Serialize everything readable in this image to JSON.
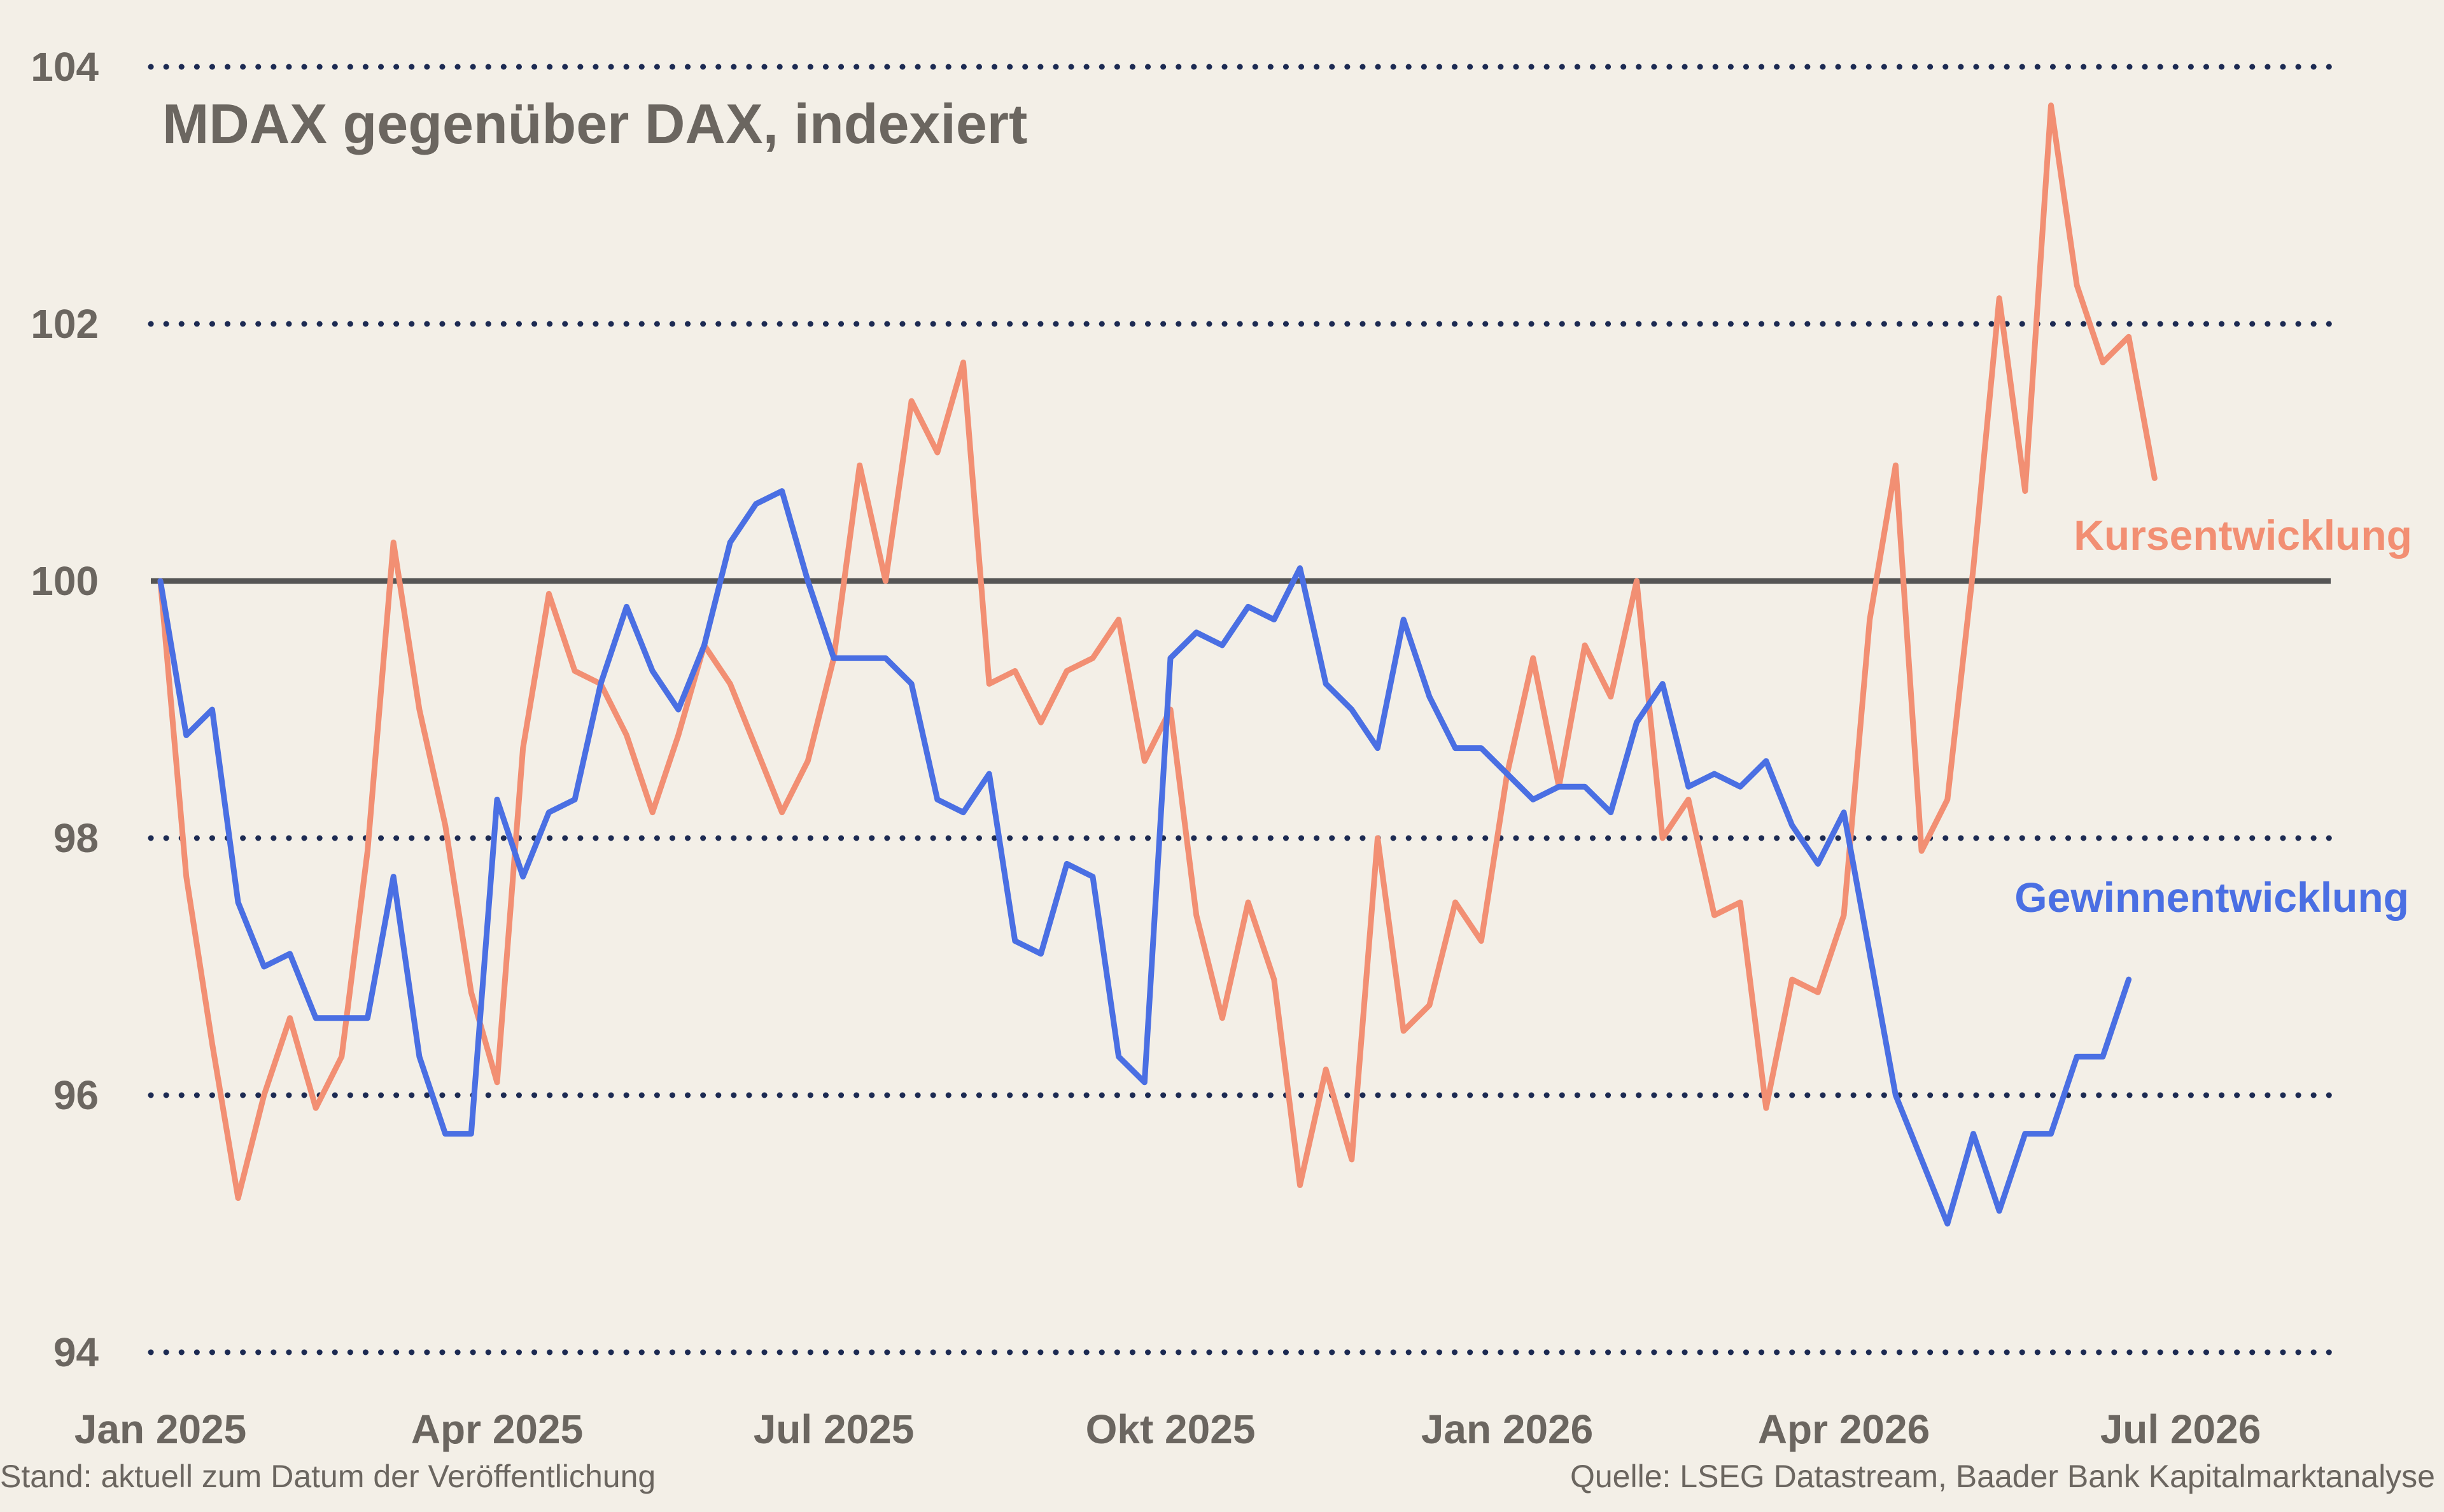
{
  "chart_data": {
    "type": "line",
    "title": "MDAX gegenüber DAX, indexiert",
    "xlabel": "",
    "ylabel": "",
    "ylim": [
      94,
      104
    ],
    "yticks": [
      94,
      96,
      98,
      100,
      102,
      104
    ],
    "ytick_labels": [
      "94",
      "96",
      "98",
      "100",
      "102",
      "104"
    ],
    "grid": true,
    "reference_line": 100,
    "x_ticks": [
      {
        "label": "Jan 2025",
        "index": 0
      },
      {
        "label": "Apr 2025",
        "index": 13
      },
      {
        "label": "Jul 2025",
        "index": 26
      },
      {
        "label": "Okt 2025",
        "index": 39
      },
      {
        "label": "Jan 2026",
        "index": 52
      },
      {
        "label": "Apr 2026",
        "index": 65
      },
      {
        "label": "Jul 2026",
        "index": 78
      }
    ],
    "series": [
      {
        "name": "Kursentwicklung",
        "color": "#f28f73",
        "values": [
          100.0,
          97.7,
          96.4,
          95.2,
          96.0,
          96.6,
          95.9,
          96.3,
          97.9,
          100.3,
          99.0,
          98.1,
          96.8,
          96.1,
          98.7,
          99.9,
          99.3,
          99.2,
          98.8,
          98.2,
          98.8,
          99.5,
          99.2,
          98.7,
          98.2,
          98.6,
          99.4,
          100.9,
          100.0,
          101.4,
          101.0,
          101.7,
          99.2,
          99.3,
          98.9,
          99.3,
          99.4,
          99.7,
          98.6,
          99.0,
          97.4,
          96.6,
          97.5,
          96.9,
          95.3,
          96.2,
          95.5,
          98.0,
          96.5,
          96.7,
          97.5,
          97.2,
          98.5,
          99.4,
          98.4,
          99.5,
          99.1,
          100.0,
          98.0,
          98.3,
          97.4,
          97.5,
          95.9,
          96.9,
          96.8,
          97.4,
          99.7,
          100.9,
          97.9,
          98.3,
          100.1,
          102.2,
          100.7,
          103.7,
          102.3,
          101.7,
          101.9,
          100.8
        ]
      },
      {
        "name": "Gewinnentwicklung",
        "color": "#4a6fe3",
        "values": [
          100.0,
          98.8,
          99.0,
          97.5,
          97.0,
          97.1,
          96.6,
          96.6,
          96.6,
          97.7,
          96.3,
          95.7,
          95.7,
          98.3,
          97.7,
          98.2,
          98.3,
          99.2,
          99.8,
          99.3,
          99.0,
          99.5,
          100.3,
          100.6,
          100.7,
          100.0,
          99.4,
          99.4,
          99.4,
          99.2,
          98.3,
          98.2,
          98.5,
          97.2,
          97.1,
          97.8,
          97.7,
          96.3,
          96.1,
          99.4,
          99.6,
          99.5,
          99.8,
          99.7,
          100.1,
          99.2,
          99.0,
          98.7,
          99.7,
          99.1,
          98.7,
          98.7,
          98.5,
          98.3,
          98.4,
          98.4,
          98.2,
          98.9,
          99.2,
          98.4,
          98.5,
          98.4,
          98.6,
          98.1,
          97.8,
          98.2,
          97.1,
          96.0,
          95.5,
          95.0,
          95.7,
          95.1,
          95.7,
          95.7,
          96.3,
          96.3,
          96.9
        ]
      }
    ],
    "series_labels": [
      {
        "text": "Kursentwicklung",
        "color": "#f28f73"
      },
      {
        "text": "Gewinnentwicklung",
        "color": "#4a6fe3"
      }
    ]
  },
  "footer": {
    "left": "Stand: aktuell zum Datum der Veröffentlichung",
    "right": "Quelle: LSEG Datastream, Baader Bank Kapitalmarktanalyse"
  }
}
